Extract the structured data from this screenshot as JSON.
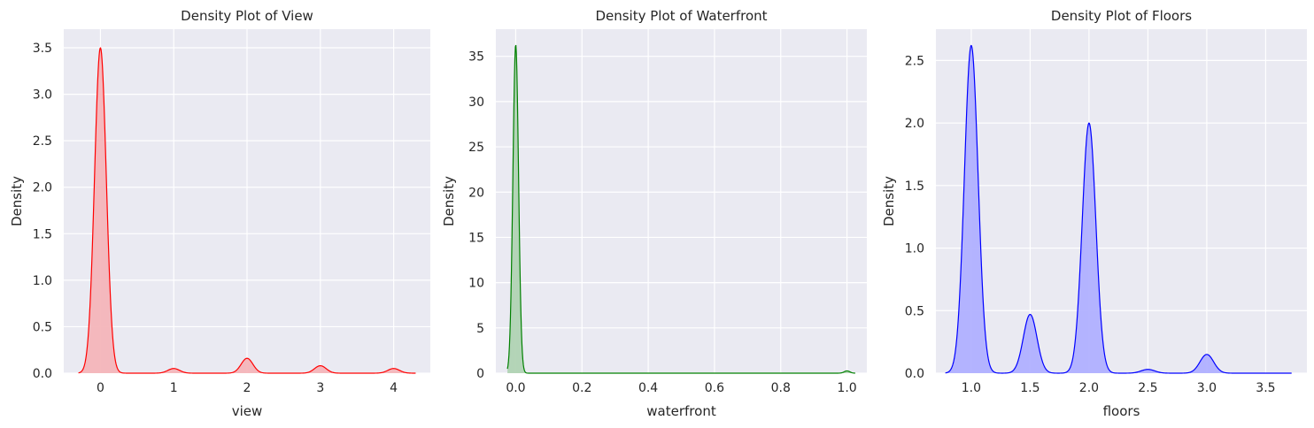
{
  "chart_data": [
    {
      "type": "area",
      "title": "Density Plot of View",
      "xlabel": "view",
      "ylabel": "Density",
      "xlim": [
        -0.5,
        4.5
      ],
      "ylim": [
        0,
        3.7
      ],
      "xticks": [
        0,
        1,
        2,
        3,
        4
      ],
      "yticks": [
        0.0,
        0.5,
        1.0,
        1.5,
        2.0,
        2.5,
        3.0,
        3.5
      ],
      "xtick_labels": [
        "0",
        "1",
        "2",
        "3",
        "4"
      ],
      "ytick_labels": [
        "0.0",
        "0.5",
        "1.0",
        "1.5",
        "2.0",
        "2.5",
        "3.0",
        "3.5"
      ],
      "color": "#ff0000",
      "fill_color": "#f4b5b9",
      "grid": true,
      "range": [
        -0.3,
        4.3
      ],
      "peaks": [
        {
          "x": 0.0,
          "y": 3.5,
          "width": 0.08
        },
        {
          "x": 1.0,
          "y": 0.05,
          "width": 0.08
        },
        {
          "x": 2.0,
          "y": 0.16,
          "width": 0.08
        },
        {
          "x": 3.0,
          "y": 0.08,
          "width": 0.08
        },
        {
          "x": 4.0,
          "y": 0.05,
          "width": 0.08
        }
      ]
    },
    {
      "type": "area",
      "title": "Density Plot of Waterfront",
      "xlabel": "waterfront",
      "ylabel": "Density",
      "xlim": [
        -0.06,
        1.06
      ],
      "ylim": [
        0,
        38
      ],
      "xticks": [
        0.0,
        0.2,
        0.4,
        0.6,
        0.8,
        1.0
      ],
      "yticks": [
        0,
        5,
        10,
        15,
        20,
        25,
        30,
        35
      ],
      "xtick_labels": [
        "0.0",
        "0.2",
        "0.4",
        "0.6",
        "0.8",
        "1.0"
      ],
      "ytick_labels": [
        "0",
        "5",
        "10",
        "15",
        "20",
        "25",
        "30",
        "35"
      ],
      "color": "#008000",
      "fill_color": "#b0d3b3",
      "grid": true,
      "range": [
        -0.025,
        1.025
      ],
      "peaks": [
        {
          "x": 0.0,
          "y": 36.3,
          "width": 0.0085
        },
        {
          "x": 1.0,
          "y": 0.25,
          "width": 0.0085
        }
      ]
    },
    {
      "type": "area",
      "title": "Density Plot of Floors",
      "xlabel": "floors",
      "ylabel": "Density",
      "xlim": [
        0.7,
        3.85
      ],
      "ylim": [
        0,
        2.75
      ],
      "xticks": [
        1.0,
        1.5,
        2.0,
        2.5,
        3.0,
        3.5
      ],
      "yticks": [
        0.0,
        0.5,
        1.0,
        1.5,
        2.0,
        2.5
      ],
      "xtick_labels": [
        "1.0",
        "1.5",
        "2.0",
        "2.5",
        "3.0",
        "3.5"
      ],
      "ytick_labels": [
        "0.0",
        "0.5",
        "1.0",
        "1.5",
        "2.0",
        "2.5"
      ],
      "color": "#0000ff",
      "fill_color": "#b0b0ff",
      "grid": true,
      "range": [
        0.78,
        3.72
      ],
      "peaks": [
        {
          "x": 1.0,
          "y": 2.62,
          "width": 0.058
        },
        {
          "x": 1.5,
          "y": 0.47,
          "width": 0.058
        },
        {
          "x": 2.0,
          "y": 2.0,
          "width": 0.058
        },
        {
          "x": 2.5,
          "y": 0.03,
          "width": 0.058
        },
        {
          "x": 3.0,
          "y": 0.15,
          "width": 0.058
        }
      ]
    }
  ]
}
